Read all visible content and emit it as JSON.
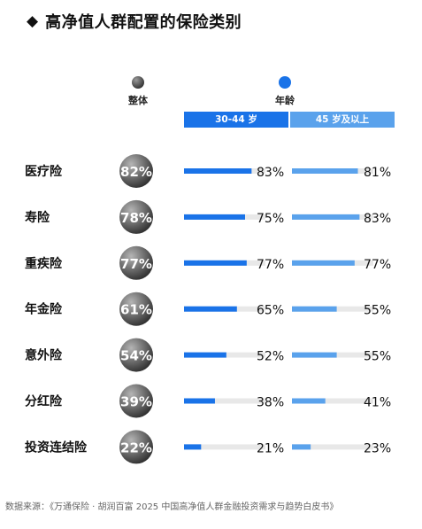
{
  "header": {
    "icon": "diamond-icon",
    "title": "高净值人群配置的保险类别"
  },
  "legend": {
    "overall_label": "整体",
    "age_label": "年龄"
  },
  "age_groups": [
    "30-44 岁",
    "45 岁及以上"
  ],
  "colors": {
    "blue_dark": "#1a73e8",
    "blue_light": "#5aa2ec",
    "track": "#e8e8e8",
    "circle_gray": "#444444"
  },
  "chart_data": {
    "type": "bar",
    "title": "高净值人群配置的保险类别",
    "categories": [
      "医疗险",
      "寿险",
      "重疾险",
      "年金险",
      "意外险",
      "分红险",
      "投资连结险"
    ],
    "overall": {
      "name": "整体",
      "values": [
        82,
        78,
        77,
        61,
        54,
        39,
        22
      ]
    },
    "series": [
      {
        "name": "30-44 岁",
        "values": [
          83,
          75,
          77,
          65,
          52,
          38,
          21
        ]
      },
      {
        "name": "45 岁及以上",
        "values": [
          81,
          83,
          77,
          55,
          55,
          41,
          23
        ]
      }
    ],
    "unit": "%",
    "xlim": [
      0,
      100
    ]
  },
  "footer": {
    "source": "数据来源：《万通保险 · 胡润百富 2025 中国高净值人群金融投资需求与趋势白皮书》"
  }
}
